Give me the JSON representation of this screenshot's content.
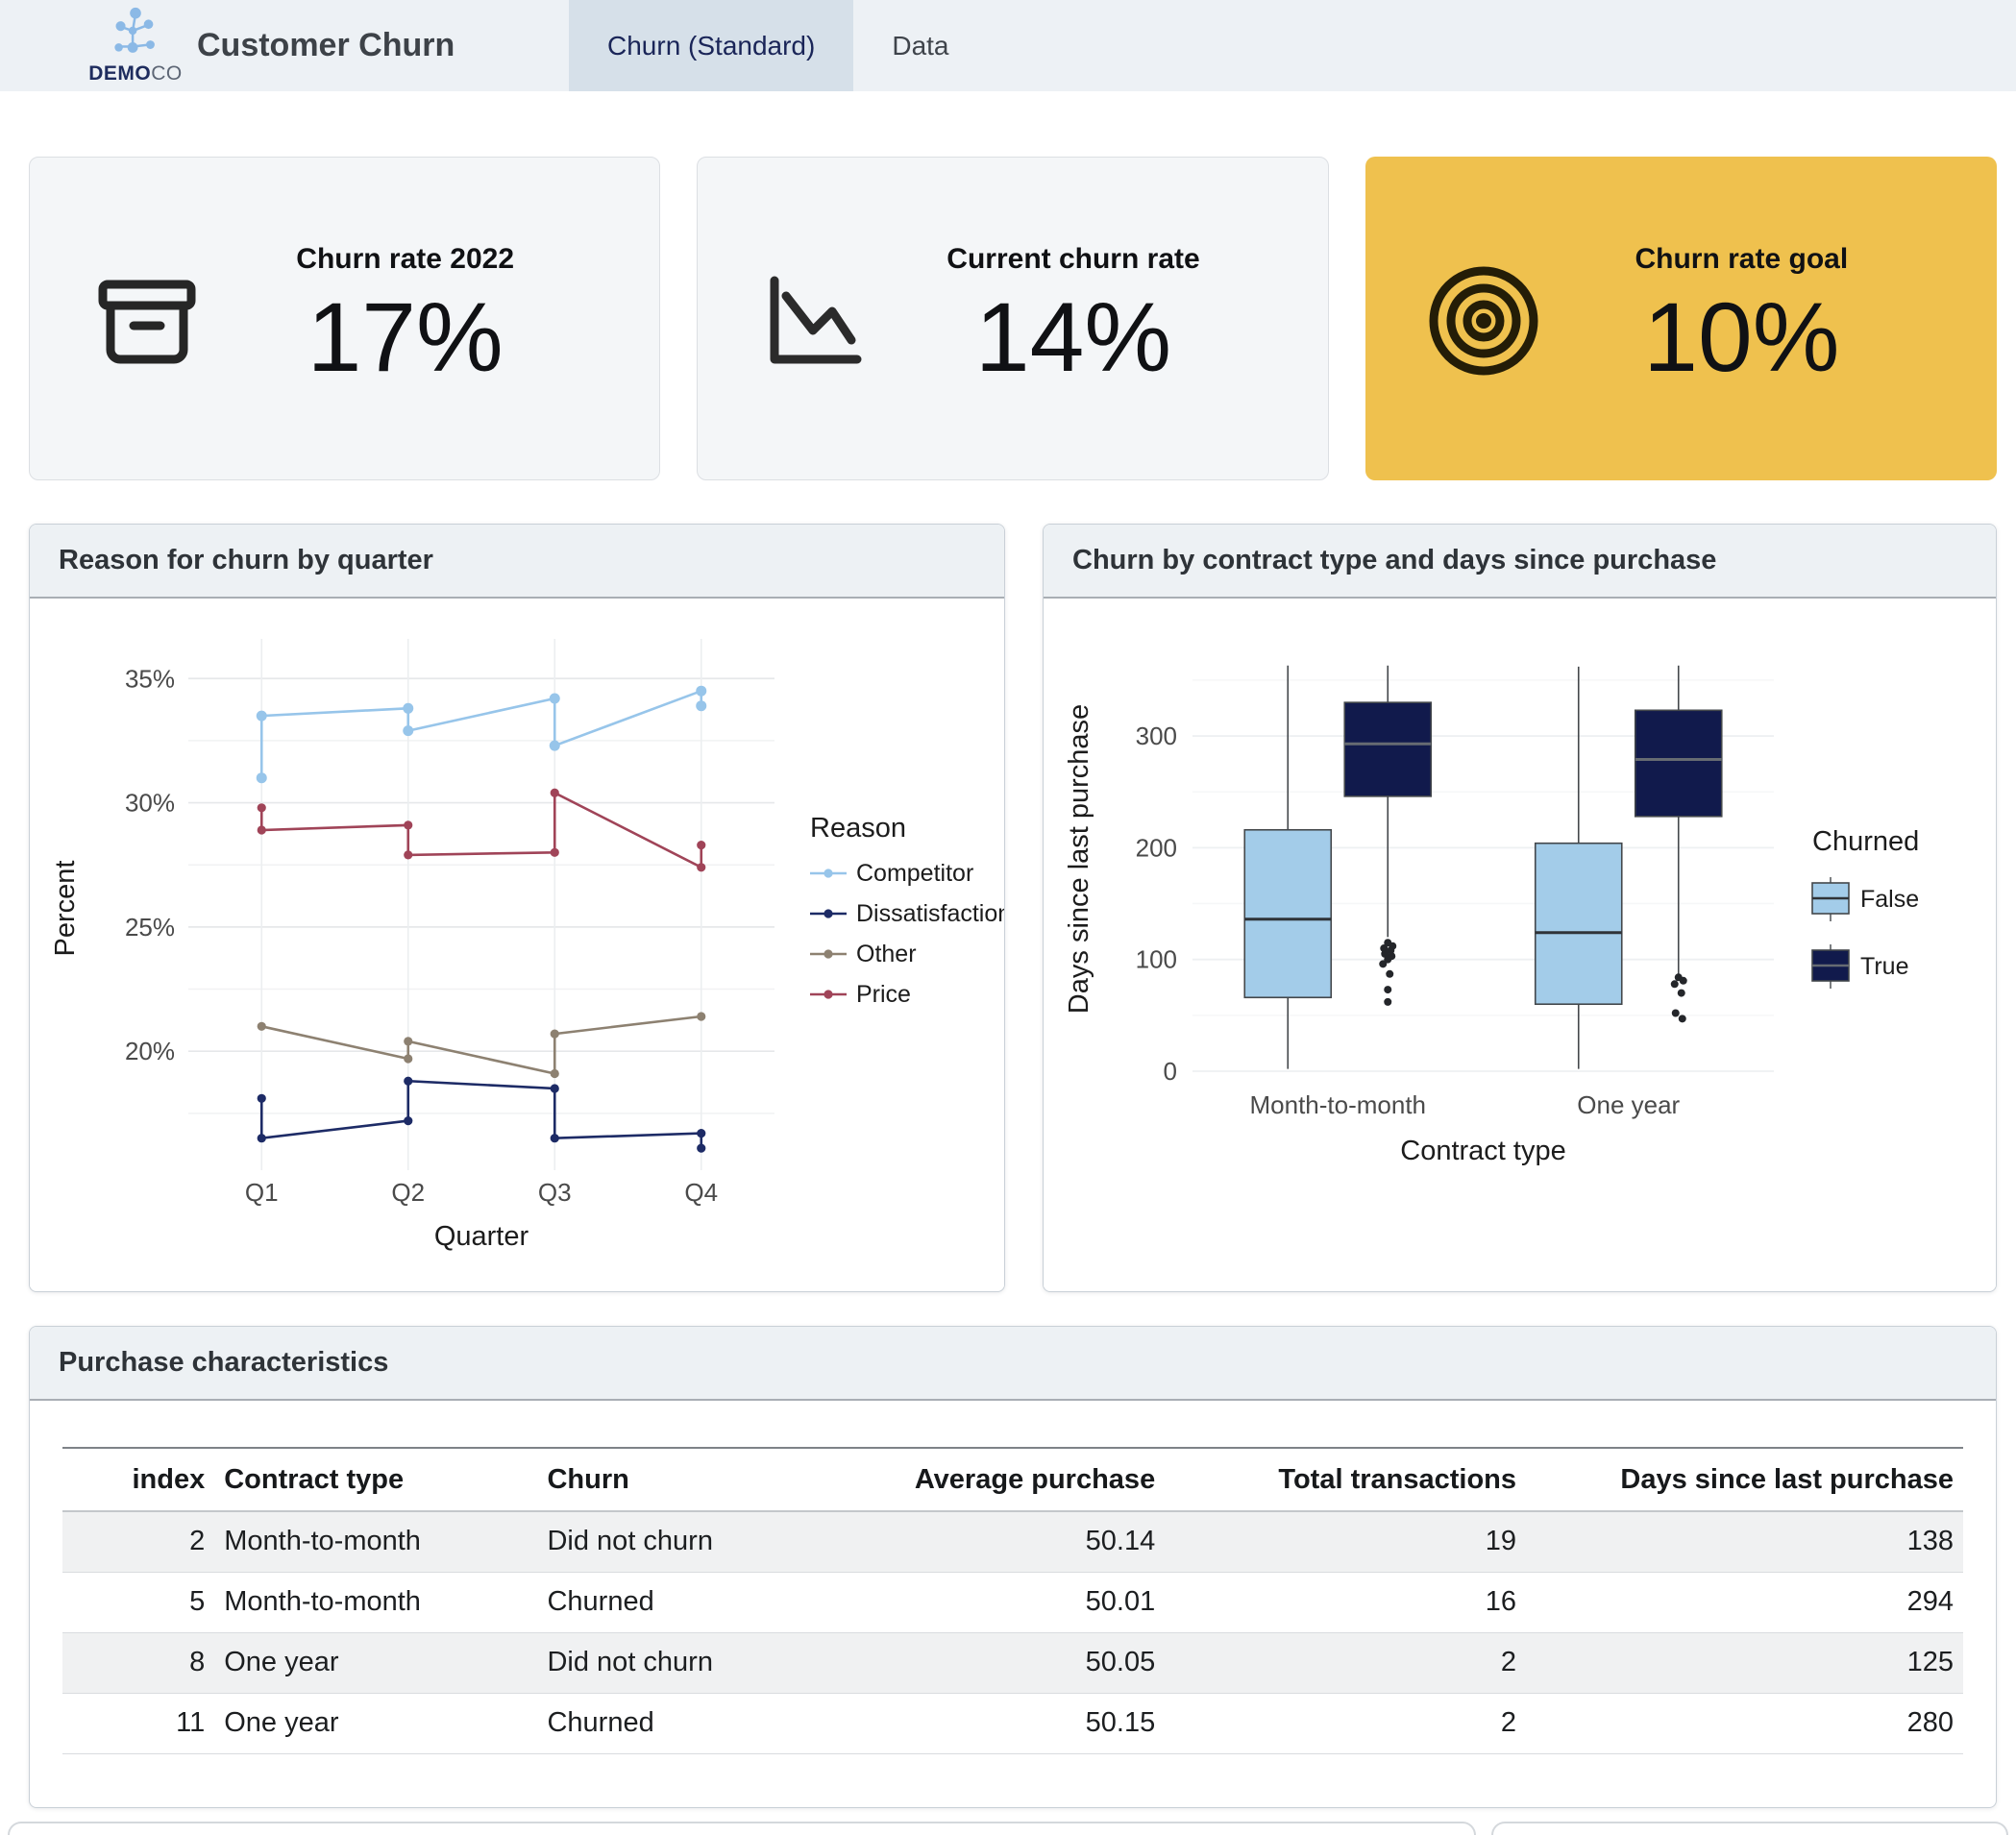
{
  "header": {
    "logo": {
      "bold": "DEMO",
      "light": "CO"
    },
    "title": "Customer Churn",
    "tabs": [
      {
        "label": "Churn (Standard)",
        "active": true
      },
      {
        "label": "Data",
        "active": false
      }
    ]
  },
  "kpis": [
    {
      "label": "Churn rate 2022",
      "value": "17%",
      "icon": "archive-box-icon"
    },
    {
      "label": "Current churn rate",
      "value": "14%",
      "icon": "trend-down-chart-icon"
    },
    {
      "label": "Churn rate goal",
      "value": "10%",
      "icon": "target-icon",
      "highlight_bg": "#efc14e"
    }
  ],
  "chart_data": [
    {
      "type": "line",
      "title": "Reason for churn by quarter",
      "xlabel": "Quarter",
      "ylabel": "Percent",
      "categories": [
        "Q1",
        "Q2",
        "Q3",
        "Q4"
      ],
      "y_ticks": [
        20,
        25,
        30,
        35
      ],
      "y_tick_labels": [
        "20%",
        "25%",
        "30%",
        "35%"
      ],
      "ylim": [
        15.6,
        35.9
      ],
      "grid": true,
      "legend_position": "right",
      "legend_title": "Reason",
      "series": [
        {
          "name": "Competitor",
          "color": "#97c5ea",
          "points": [
            [
              0,
              31.0
            ],
            [
              0,
              33.5
            ],
            [
              1,
              33.8
            ],
            [
              1,
              32.9
            ],
            [
              2,
              34.2
            ],
            [
              2,
              32.3
            ],
            [
              3,
              34.5
            ],
            [
              3,
              33.9
            ]
          ]
        },
        {
          "name": "Dissatisfaction",
          "color": "#1d2b66",
          "points": [
            [
              0,
              18.1
            ],
            [
              0,
              16.5
            ],
            [
              1,
              17.2
            ],
            [
              1,
              18.8
            ],
            [
              2,
              18.5
            ],
            [
              2,
              16.5
            ],
            [
              3,
              16.7
            ],
            [
              3,
              16.1
            ]
          ]
        },
        {
          "name": "Other",
          "color": "#8d8171",
          "points": [
            [
              0,
              21.0
            ],
            [
              1,
              19.7
            ],
            [
              1,
              20.4
            ],
            [
              2,
              19.1
            ],
            [
              2,
              20.7
            ],
            [
              3,
              21.4
            ]
          ]
        },
        {
          "name": "Price",
          "color": "#a04458",
          "points": [
            [
              0,
              29.8
            ],
            [
              0,
              28.9
            ],
            [
              1,
              29.1
            ],
            [
              1,
              27.9
            ],
            [
              2,
              28.0
            ],
            [
              2,
              30.4
            ],
            [
              3,
              27.4
            ],
            [
              3,
              28.3
            ]
          ]
        }
      ]
    },
    {
      "type": "boxplot",
      "title": "Churn by contract type and days since purchase",
      "xlabel": "Contract type",
      "ylabel": "Days since last purchase",
      "categories": [
        "Month-to-month",
        "One year"
      ],
      "y_ticks": [
        0,
        100,
        200,
        300
      ],
      "y_tick_labels": [
        "0",
        "100",
        "200",
        "300"
      ],
      "ylim": [
        0,
        380
      ],
      "grid": true,
      "legend_position": "right",
      "legend_title": "Churned",
      "groups": [
        {
          "name": "False",
          "color": "#a3cce9"
        },
        {
          "name": "True",
          "color": "#111a4c"
        }
      ],
      "boxes": [
        {
          "category": "Month-to-month",
          "group": "False",
          "low": 2,
          "q1": 66,
          "median": 136,
          "q3": 216,
          "high": 363,
          "outliers": []
        },
        {
          "category": "Month-to-month",
          "group": "True",
          "low": 120,
          "q1": 246,
          "median": 293,
          "q3": 330,
          "high": 363,
          "outliers": [
            115,
            112,
            110,
            108,
            105,
            103,
            100,
            96,
            87,
            73,
            62
          ]
        },
        {
          "category": "One year",
          "group": "False",
          "low": 2,
          "q1": 60,
          "median": 124,
          "q3": 204,
          "high": 362,
          "outliers": []
        },
        {
          "category": "One year",
          "group": "True",
          "low": 86,
          "q1": 228,
          "median": 279,
          "q3": 323,
          "high": 363,
          "outliers": [
            84,
            81,
            78,
            70,
            52,
            47
          ]
        }
      ]
    }
  ],
  "table": {
    "title": "Purchase characteristics",
    "columns": [
      {
        "label": "index",
        "align": "right"
      },
      {
        "label": "Contract type",
        "align": "left"
      },
      {
        "label": "Churn",
        "align": "left"
      },
      {
        "label": "Average purchase",
        "align": "right"
      },
      {
        "label": "Total transactions",
        "align": "right"
      },
      {
        "label": "Days since last purchase",
        "align": "right"
      }
    ],
    "rows": [
      [
        "2",
        "Month-to-month",
        "Did not churn",
        "50.14",
        "19",
        "138"
      ],
      [
        "5",
        "Month-to-month",
        "Churned",
        "50.01",
        "16",
        "294"
      ],
      [
        "8",
        "One year",
        "Did not churn",
        "50.05",
        "2",
        "125"
      ],
      [
        "11",
        "One year",
        "Churned",
        "50.15",
        "2",
        "280"
      ]
    ]
  },
  "colors": {
    "header_bg": "#edf1f5",
    "active_tab_bg": "#d6e0e9",
    "panel_header_bg": "#edf1f4",
    "kpi_card_bg": "#f4f6f8",
    "gold_accent": "#efc14e",
    "row_stripe": "#f0f1f2"
  }
}
